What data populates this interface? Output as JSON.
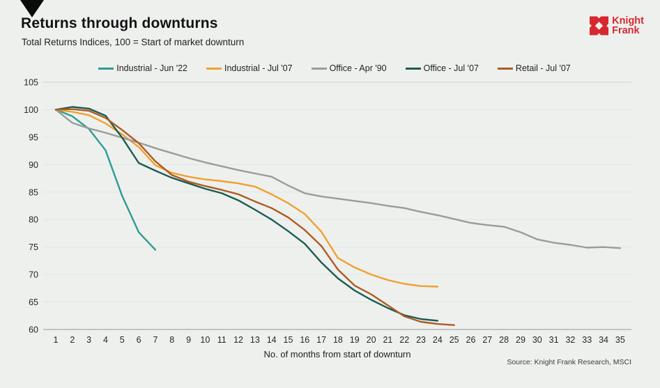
{
  "header": {
    "title": "Returns through downturns",
    "subtitle": "Total Returns Indices, 100 = Start of market downturn"
  },
  "brand": {
    "line1": "Knight",
    "line2": "Frank",
    "color": "#D7282F"
  },
  "footer": {
    "source": "Source: Knight Frank Research, MSCI"
  },
  "chart_data": {
    "type": "line",
    "title": "Returns through downturns",
    "subtitle": "Total Returns Indices, 100 = Start of market downturn",
    "xlabel": "No. of months from start of downturn",
    "ylabel": "",
    "ylim": [
      60,
      105
    ],
    "xlim": [
      1,
      35
    ],
    "grid": "horizontal",
    "legend_position": "top",
    "y_ticks": [
      105,
      100,
      95,
      90,
      85,
      80,
      75,
      70,
      65,
      60
    ],
    "x_ticks": [
      1,
      2,
      3,
      4,
      5,
      6,
      7,
      8,
      9,
      10,
      11,
      12,
      13,
      14,
      15,
      16,
      17,
      18,
      19,
      20,
      21,
      22,
      23,
      24,
      25,
      26,
      27,
      28,
      29,
      30,
      31,
      32,
      33,
      34,
      35
    ],
    "series": [
      {
        "name": "Industrial - Jun '22",
        "color": "#2A9D92",
        "start_month": 1,
        "values": [
          100,
          98.8,
          96.5,
          92.6,
          84.3,
          77.7,
          74.5
        ]
      },
      {
        "name": "Industrial - Jul '07",
        "color": "#F0A02F",
        "start_month": 1,
        "values": [
          100,
          99.6,
          99.0,
          97.5,
          95.5,
          93.2,
          89.9,
          88.5,
          87.8,
          87.3,
          87.0,
          86.6,
          86.0,
          84.6,
          83.0,
          81.0,
          77.8,
          73.0,
          71.3,
          70.0,
          69.0,
          68.3,
          67.9,
          67.8
        ]
      },
      {
        "name": "Office - Apr '90",
        "color": "#9B9B9B",
        "start_month": 1,
        "values": [
          100,
          97.6,
          96.6,
          95.8,
          94.9,
          94.0,
          93.0,
          92.1,
          91.2,
          90.4,
          89.7,
          89.0,
          88.4,
          87.8,
          86.2,
          84.8,
          84.2,
          83.8,
          83.4,
          83.0,
          82.5,
          82.1,
          81.4,
          80.8,
          80.1,
          79.4,
          79.0,
          78.7,
          77.7,
          76.4,
          75.8,
          75.4,
          74.9,
          75.0,
          74.8
        ]
      },
      {
        "name": "Office - Jul '07",
        "color": "#1A5C52",
        "start_month": 1,
        "values": [
          100,
          100.5,
          100.2,
          98.9,
          94.9,
          90.3,
          88.9,
          87.6,
          86.6,
          85.6,
          84.8,
          83.5,
          81.8,
          80.0,
          77.9,
          75.6,
          72.2,
          69.3,
          67.1,
          65.4,
          63.9,
          62.6,
          61.9,
          61.6
        ]
      },
      {
        "name": "Retail - Jul '07",
        "color": "#AE5B22",
        "start_month": 1,
        "values": [
          100,
          100.1,
          99.8,
          98.5,
          96.3,
          93.9,
          90.6,
          88.1,
          86.9,
          86.1,
          85.4,
          84.6,
          83.3,
          82.1,
          80.4,
          78.1,
          75.2,
          70.9,
          68.0,
          66.4,
          64.4,
          62.4,
          61.4,
          61.0,
          60.8
        ]
      }
    ],
    "colors": {
      "background": "#EEF0EE",
      "gridline": "#E2E5E2",
      "gridline_top": "#CFD2CF",
      "axis_line": "#A6A9A6",
      "tick_text": "#262626"
    }
  }
}
